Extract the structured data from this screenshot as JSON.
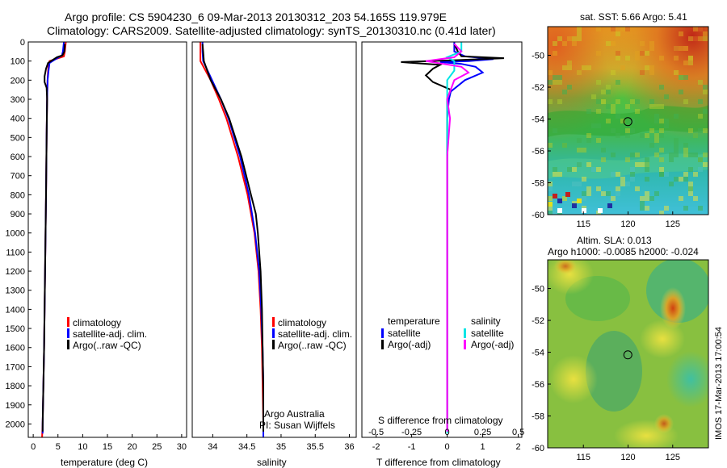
{
  "header": {
    "title_line1": "Argo profile: CS 5904230_6 09-Mar-2013 20130312_203 54.165S 119.979E",
    "title_line2": "Climatology: CARS2009. Satellite-adjusted climatology: synTS_20130310.nc (0.41d later)"
  },
  "colors": {
    "climatology": "#ff0000",
    "satellite_adj": "#0000ff",
    "argo": "#000000",
    "satellite_salinity": "#00e5e5",
    "argo_salinity_adj": "#ff00ff"
  },
  "depth_ticks": [
    "0",
    "100",
    "200",
    "300",
    "400",
    "500",
    "600",
    "700",
    "800",
    "900",
    "1000",
    "1100",
    "1200",
    "1300",
    "1400",
    "1500",
    "1600",
    "1700",
    "1800",
    "1900",
    "2000"
  ],
  "chart_data": [
    {
      "type": "line",
      "name": "temperature",
      "xlabel": "temperature (deg C)",
      "xlim": [
        -1,
        31
      ],
      "ylim": [
        2070,
        0
      ],
      "xticks": [
        "0",
        "5",
        "10",
        "15",
        "20",
        "25",
        "30"
      ],
      "legend": [
        "climatology",
        "satellite-adj. clim.",
        "Argo(..raw -QC)"
      ],
      "series": [
        {
          "name": "climatology",
          "depth": [
            0,
            50,
            75,
            100,
            120,
            150,
            200,
            300,
            500,
            800,
            1200,
            1600,
            2000,
            2070
          ],
          "values": [
            6.6,
            6.4,
            6.2,
            3.3,
            3.1,
            3.0,
            2.9,
            2.8,
            2.7,
            2.6,
            2.4,
            2.2,
            1.9,
            1.8
          ]
        },
        {
          "name": "satellite-adj. clim.",
          "depth": [
            0,
            50,
            70,
            95,
            110,
            150,
            200,
            300,
            500,
            800,
            1200,
            1600,
            2000,
            2050
          ],
          "values": [
            6.2,
            6.0,
            5.8,
            4.2,
            3.3,
            3.1,
            2.9,
            2.8,
            2.7,
            2.6,
            2.4,
            2.2,
            1.9,
            1.9
          ]
        },
        {
          "name": "Argo(..raw -QC)",
          "depth": [
            10,
            50,
            70,
            80,
            110,
            140,
            180,
            210,
            240,
            300,
            500,
            800,
            1200,
            1600,
            2000,
            2040
          ],
          "values": [
            6.4,
            6.3,
            5.9,
            4.8,
            3.0,
            2.6,
            2.3,
            2.3,
            2.7,
            2.8,
            2.7,
            2.6,
            2.4,
            2.2,
            1.9,
            1.9
          ]
        }
      ]
    },
    {
      "type": "line",
      "name": "salinity",
      "xlabel": "salinity",
      "xlim": [
        33.7,
        36.1
      ],
      "ylim": [
        2070,
        0
      ],
      "xticks": [
        "34",
        "34.5",
        "35",
        "35.5",
        "36"
      ],
      "legend": [
        "climatology",
        "satellite-adj. clim.",
        "Argo(..raw -QC)"
      ],
      "annotation_line1": "Argo Australia",
      "annotation_line2": "PI: Susan Wijffels",
      "series": [
        {
          "name": "climatology",
          "depth": [
            0,
            50,
            100,
            200,
            300,
            400,
            600,
            800,
            1000,
            1200,
            1400,
            1600,
            1800,
            2000,
            2070
          ],
          "values": [
            33.82,
            33.82,
            33.82,
            33.97,
            34.09,
            34.2,
            34.37,
            34.51,
            34.61,
            34.67,
            34.7,
            34.72,
            34.73,
            34.74,
            34.74
          ]
        },
        {
          "name": "satellite-adj. clim.",
          "depth": [
            0,
            50,
            100,
            200,
            300,
            400,
            600,
            800,
            1000,
            1200,
            1400,
            1600,
            1800,
            2000,
            2070
          ],
          "values": [
            33.85,
            33.85,
            33.86,
            33.99,
            34.12,
            34.23,
            34.4,
            34.53,
            34.62,
            34.68,
            34.71,
            34.73,
            34.74,
            34.74,
            34.74
          ]
        },
        {
          "name": "Argo(..raw -QC)",
          "depth": [
            10,
            50,
            100,
            200,
            300,
            400,
            600,
            800,
            900,
            1000,
            1200,
            1400,
            1600,
            1800,
            2000,
            2040
          ],
          "values": [
            33.85,
            33.86,
            33.87,
            33.97,
            34.12,
            34.24,
            34.42,
            34.56,
            34.63,
            34.66,
            34.7,
            34.72,
            34.73,
            34.74,
            34.74,
            34.74
          ]
        }
      ]
    },
    {
      "type": "line",
      "name": "difference",
      "xlabel_bottom": "T difference from climatology",
      "xlabel_top": "S difference from climatology",
      "xlim": [
        -2.4,
        2.1
      ],
      "ylim": [
        2070,
        0
      ],
      "xticks_T": [
        "-2",
        "-1",
        "0",
        "1",
        "2"
      ],
      "xticks_S": [
        "-0.5",
        "-0.25",
        "0",
        "0.25",
        "0.5"
      ],
      "legend_titles": [
        "temperature",
        "salinity"
      ],
      "legend_temperature": [
        "satellite",
        "Argo(-adj)"
      ],
      "legend_salinity": [
        "satellite",
        "Argo(-adj)"
      ],
      "series": [
        {
          "name": "temperature satellite",
          "depth": [
            0,
            50,
            75,
            90,
            100,
            105,
            115,
            130,
            160,
            200,
            260,
            300,
            400,
            600,
            1000,
            1500,
            2000,
            2040
          ],
          "values": [
            0.2,
            0.2,
            0.5,
            1.3,
            0.6,
            -0.2,
            0.4,
            0.8,
            1.0,
            0.5,
            0.1,
            0.05,
            0.0,
            0.0,
            0.0,
            0.0,
            0.0,
            0.0
          ]
        },
        {
          "name": "temperature Argo(-adj)",
          "depth": [
            10,
            50,
            75,
            85,
            95,
            105,
            120,
            140,
            175,
            210,
            250,
            300,
            400,
            600,
            1000,
            1500,
            2000,
            2040
          ],
          "values": [
            0.2,
            0.3,
            0.4,
            1.6,
            0.3,
            -1.3,
            -0.2,
            -0.4,
            -0.6,
            -0.4,
            0.1,
            0.0,
            0.0,
            0.0,
            0.0,
            0.0,
            0.0,
            0.0
          ]
        },
        {
          "name": "salinity satellite",
          "depth": [
            0,
            50,
            80,
            100,
            150,
            200,
            400,
            800,
            1200,
            1600,
            2000,
            2050
          ],
          "values": [
            0.1,
            0.1,
            0.0,
            0.05,
            0.05,
            0.0,
            0.0,
            0.0,
            0.0,
            0.0,
            0.0,
            0.0
          ]
        },
        {
          "name": "salinity Argo(-adj)",
          "depth": [
            10,
            50,
            80,
            100,
            130,
            160,
            200,
            300,
            400,
            600,
            900,
            1200,
            1600,
            2000,
            2040
          ],
          "values": [
            0.05,
            0.1,
            0.05,
            -0.15,
            0.1,
            0.15,
            0.05,
            0.0,
            0.02,
            0.0,
            0.0,
            0.0,
            0.0,
            0.0,
            0.0
          ]
        }
      ]
    },
    {
      "type": "heatmap",
      "name": "sst_map",
      "title": "sat. SST: 5.66 Argo: 5.41",
      "xlim": [
        111,
        129
      ],
      "ylim": [
        -60,
        -48.2
      ],
      "xticks": [
        "115",
        "120",
        "125"
      ],
      "yticks": [
        "-50",
        "-52",
        "-54",
        "-56",
        "-58",
        "-60"
      ],
      "marker": {
        "lon": 119.979,
        "lat": -54.165
      }
    },
    {
      "type": "heatmap",
      "name": "sla_map",
      "title_line1": "Altim. SLA: 0.013",
      "title_line2": "Argo h1000: -0.0085 h2000: -0.024",
      "xlim": [
        111,
        129
      ],
      "ylim": [
        -60,
        -48.2
      ],
      "xticks": [
        "115",
        "120",
        "125"
      ],
      "yticks": [
        "-50",
        "-52",
        "-54",
        "-56",
        "-58",
        "-60"
      ],
      "marker": {
        "lon": 119.979,
        "lat": -54.165
      }
    }
  ],
  "footer_stamp": "IMOS 17-Mar-2013 17:00:54"
}
